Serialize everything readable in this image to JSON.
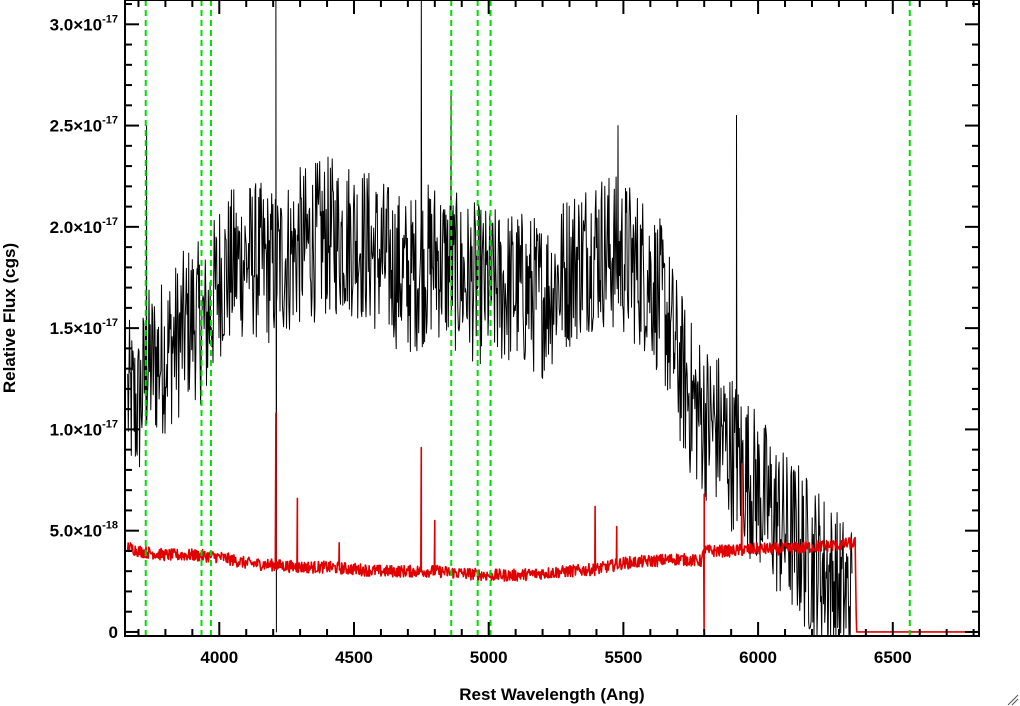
{
  "chart_data": {
    "type": "line",
    "title": "",
    "xlabel": "Rest Wavelength (Ang)",
    "ylabel": "Relative Flux (cgs)",
    "xlim": [
      3650,
      6820
    ],
    "ylim": [
      -2e-19,
      3.12e-17
    ],
    "x_ticks": [
      {
        "value": 4000,
        "label": "4000"
      },
      {
        "value": 4500,
        "label": "4500"
      },
      {
        "value": 5000,
        "label": "5000"
      },
      {
        "value": 5500,
        "label": "5500"
      },
      {
        "value": 6000,
        "label": "6000"
      },
      {
        "value": 6500,
        "label": "6500"
      }
    ],
    "y_ticks": [
      {
        "value": 0,
        "mantissa": "0",
        "exponent": ""
      },
      {
        "value": 5e-18,
        "mantissa": "5.0×10",
        "exponent": "-18"
      },
      {
        "value": 1e-17,
        "mantissa": "1.0×10",
        "exponent": "-17"
      },
      {
        "value": 1.5e-17,
        "mantissa": "1.5×10",
        "exponent": "-17"
      },
      {
        "value": 2e-17,
        "mantissa": "2.0×10",
        "exponent": "-17"
      },
      {
        "value": 2.5e-17,
        "mantissa": "2.5×10",
        "exponent": "-17"
      },
      {
        "value": 3e-17,
        "mantissa": "3.0×10",
        "exponent": "-17"
      }
    ],
    "series": [
      {
        "color": "#000000",
        "x": [
          3660,
          3700,
          3730,
          3780,
          3850,
          3900,
          3950,
          4000,
          4100,
          4200,
          4300,
          4400,
          4500,
          4600,
          4700,
          4800,
          4900,
          5000,
          5100,
          5200,
          5300,
          5400,
          5500,
          5600,
          5650,
          5700,
          5750,
          5800,
          5850,
          5900,
          5950,
          6000,
          6050,
          6100,
          6150,
          6200,
          6250,
          6300,
          6350
        ],
        "y": [
          1.15e-17,
          1.1e-17,
          1.3e-17,
          1.35e-17,
          1.45e-17,
          1.55e-17,
          1.5e-17,
          1.75e-17,
          1.85e-17,
          1.8e-17,
          1.9e-17,
          1.95e-17,
          1.95e-17,
          1.85e-17,
          1.75e-17,
          1.85e-17,
          1.75e-17,
          1.7e-17,
          1.7e-17,
          1.65e-17,
          1.8e-17,
          1.9e-17,
          1.85e-17,
          1.75e-17,
          1.6e-17,
          1.35e-17,
          1.15e-17,
          1.05e-17,
          1e-17,
          9e-18,
          8e-18,
          7e-18,
          6e-18,
          5e-18,
          4.5e-18,
          3.5e-18,
          3e-18,
          2e-18,
          1.5e-18
        ],
        "noise": 4e-18,
        "spikes": [
          {
            "x": 3730,
            "y": 2.5e-17
          },
          {
            "x": 4210,
            "y": 3.12e-17
          },
          {
            "x": 4212,
            "y": 0
          },
          {
            "x": 4750,
            "y": 3.12e-17
          },
          {
            "x": 4860,
            "y": 2.65e-17
          },
          {
            "x": 5480,
            "y": 2.5e-17
          },
          {
            "x": 5920,
            "y": 2.55e-17
          }
        ]
      },
      {
        "color": "#e00000",
        "x": [
          3660,
          3700,
          3800,
          3900,
          4000,
          4100,
          4200,
          4300,
          4400,
          4500,
          4600,
          4700,
          4800,
          4900,
          5000,
          5100,
          5200,
          5300,
          5400,
          5500,
          5600,
          5700,
          5790,
          5800,
          5900,
          6000,
          6100,
          6200,
          6300,
          6360,
          6365,
          6820
        ],
        "y": [
          4.2e-18,
          4e-18,
          3.8e-18,
          3.8e-18,
          3.7e-18,
          3.4e-18,
          3.3e-18,
          3.2e-18,
          3.2e-18,
          3.1e-18,
          3e-18,
          3e-18,
          3e-18,
          2.9e-18,
          2.8e-18,
          2.8e-18,
          2.9e-18,
          3e-18,
          3.1e-18,
          3.4e-18,
          3.5e-18,
          3.6e-18,
          3.5e-18,
          4e-18,
          4e-18,
          4.1e-18,
          4.1e-18,
          4.2e-18,
          4.3e-18,
          4.4e-18,
          0,
          0
        ],
        "drop_to_zero_at": 5800,
        "noise": 3e-19,
        "spikes": [
          {
            "x": 4210,
            "y": 1.08e-17
          },
          {
            "x": 4290,
            "y": 6.6e-18
          },
          {
            "x": 4445,
            "y": 4.4e-18
          },
          {
            "x": 4750,
            "y": 9.1e-18
          },
          {
            "x": 4800,
            "y": 5.5e-18
          },
          {
            "x": 5395,
            "y": 6.2e-18
          },
          {
            "x": 5475,
            "y": 5.2e-18
          },
          {
            "x": 5800,
            "y": 6.8e-18
          },
          {
            "x": 5940,
            "y": 8.3e-18
          }
        ]
      }
    ],
    "reference_lines": {
      "color": "#00dd00",
      "style": "dashed",
      "x": [
        3727,
        3934,
        3969,
        4861,
        4959,
        5007,
        6563
      ]
    },
    "grid": false
  }
}
